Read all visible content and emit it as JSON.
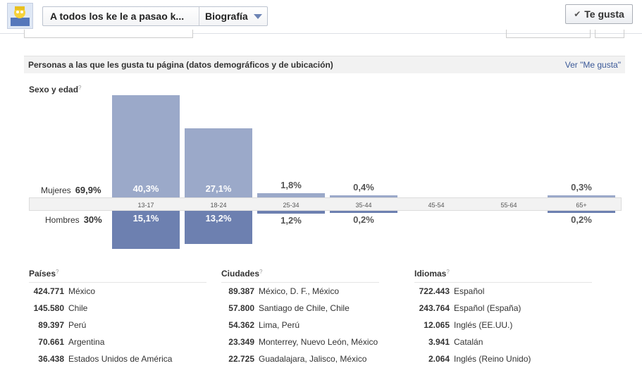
{
  "topbar": {
    "page_name": "A todos los ke le a pasao k...",
    "section": "Biografía",
    "like_label": "Te gusta"
  },
  "header": {
    "title": "Personas a las que les gusta tu página (datos demográficos y de ubicación)",
    "link": "Ver \"Me gusta\""
  },
  "demographics": {
    "title": "Sexo y edad",
    "women_label": "Mujeres",
    "women_total": "69,9%",
    "men_label": "Hombres",
    "men_total": "30%"
  },
  "chart_data": {
    "type": "bar",
    "categories": [
      "13-17",
      "18-24",
      "25-34",
      "35-44",
      "45-54",
      "55-64",
      "65+"
    ],
    "series": [
      {
        "name": "Mujeres",
        "values": [
          40.3,
          27.1,
          1.8,
          0.4,
          0,
          0,
          0.3
        ],
        "labels": [
          "40,3%",
          "27,1%",
          "1,8%",
          "0,4%",
          "",
          "",
          "0,3%"
        ]
      },
      {
        "name": "Hombres",
        "values": [
          15.1,
          13.2,
          1.2,
          0.2,
          0,
          0,
          0.2
        ],
        "labels": [
          "15,1%",
          "13,2%",
          "1,2%",
          "0,2%",
          "",
          "",
          "0,2%"
        ]
      }
    ],
    "colors": {
      "women": "#9ba9c9",
      "men": "#6d80b0"
    }
  },
  "countries": {
    "title": "Países",
    "items": [
      {
        "count": "424.771",
        "name": "México"
      },
      {
        "count": "145.580",
        "name": "Chile"
      },
      {
        "count": "89.397",
        "name": "Perú"
      },
      {
        "count": "70.661",
        "name": "Argentina"
      },
      {
        "count": "36.438",
        "name": "Estados Unidos de América"
      }
    ]
  },
  "cities": {
    "title": "Ciudades",
    "items": [
      {
        "count": "89.387",
        "name": "México, D. F., México"
      },
      {
        "count": "57.800",
        "name": "Santiago de Chile, Chile"
      },
      {
        "count": "54.362",
        "name": "Lima, Perú"
      },
      {
        "count": "23.349",
        "name": "Monterrey, Nuevo León, México"
      },
      {
        "count": "22.725",
        "name": "Guadalajara, Jalisco, México"
      }
    ]
  },
  "languages": {
    "title": "Idiomas",
    "items": [
      {
        "count": "722.443",
        "name": "Español"
      },
      {
        "count": "243.764",
        "name": "Español (España)"
      },
      {
        "count": "12.065",
        "name": "Inglés (EE.UU.)"
      },
      {
        "count": "3.941",
        "name": "Catalán"
      },
      {
        "count": "2.064",
        "name": "Inglés (Reino Unido)"
      }
    ]
  }
}
